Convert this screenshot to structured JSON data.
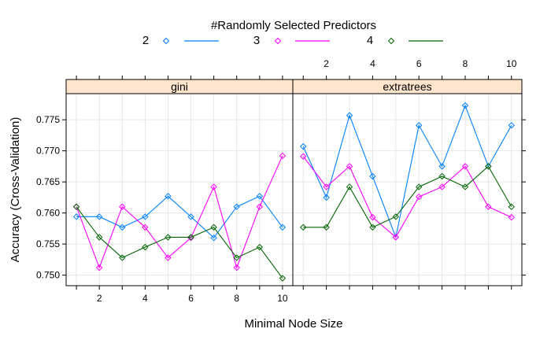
{
  "chart_data": {
    "type": "line",
    "legend": {
      "title": "#Randomly Selected Predictors",
      "placement": "top",
      "series_labels": [
        "2",
        "3",
        "4"
      ]
    },
    "xlabel": "Minimal Node Size",
    "ylabel": "Accuracy (Cross-Validation)",
    "xlim": [
      0.55,
      10.45
    ],
    "ylim": [
      0.7483,
      0.7792
    ],
    "x_ticks": [
      2,
      4,
      6,
      8,
      10
    ],
    "y_ticks": [
      0.75,
      0.755,
      0.76,
      0.765,
      0.77,
      0.775
    ],
    "y_tick_labels": [
      "0.750",
      "0.755",
      "0.760",
      "0.765",
      "0.770",
      "0.775"
    ],
    "x_tick_labels": [
      "2",
      "4",
      "6",
      "8",
      "10"
    ],
    "grid": true,
    "colors": {
      "2": "#0080ff",
      "3": "#ff00ff",
      "4": "#006400",
      "strip_bg": "#ffe5cc",
      "grid": "#e6e6e6"
    },
    "x": [
      1,
      2,
      3,
      4,
      5,
      6,
      7,
      8,
      9,
      10
    ],
    "panels": [
      {
        "name": "gini",
        "series": [
          {
            "name": "2",
            "values": [
              0.7594,
              0.7594,
              0.7577,
              0.7594,
              0.7627,
              0.7594,
              0.756,
              0.761,
              0.7627,
              0.7577
            ]
          },
          {
            "name": "3",
            "values": [
              0.761,
              0.7512,
              0.761,
              0.7577,
              0.7528,
              0.756,
              0.7642,
              0.7512,
              0.761,
              0.7692
            ]
          },
          {
            "name": "4",
            "values": [
              0.761,
              0.7561,
              0.7528,
              0.7545,
              0.7561,
              0.7561,
              0.7577,
              0.7528,
              0.7545,
              0.7495
            ]
          }
        ]
      },
      {
        "name": "extratrees",
        "series": [
          {
            "name": "2",
            "values": [
              0.7707,
              0.7625,
              0.7757,
              0.7659,
              0.7561,
              0.7741,
              0.7675,
              0.7773,
              0.7675,
              0.7741
            ]
          },
          {
            "name": "3",
            "values": [
              0.7691,
              0.7642,
              0.7675,
              0.7593,
              0.7561,
              0.7626,
              0.7642,
              0.7675,
              0.761,
              0.7593
            ]
          },
          {
            "name": "4",
            "values": [
              0.7577,
              0.7577,
              0.7642,
              0.7577,
              0.7594,
              0.7642,
              0.7659,
              0.7642,
              0.7675,
              0.761
            ]
          }
        ]
      }
    ]
  }
}
